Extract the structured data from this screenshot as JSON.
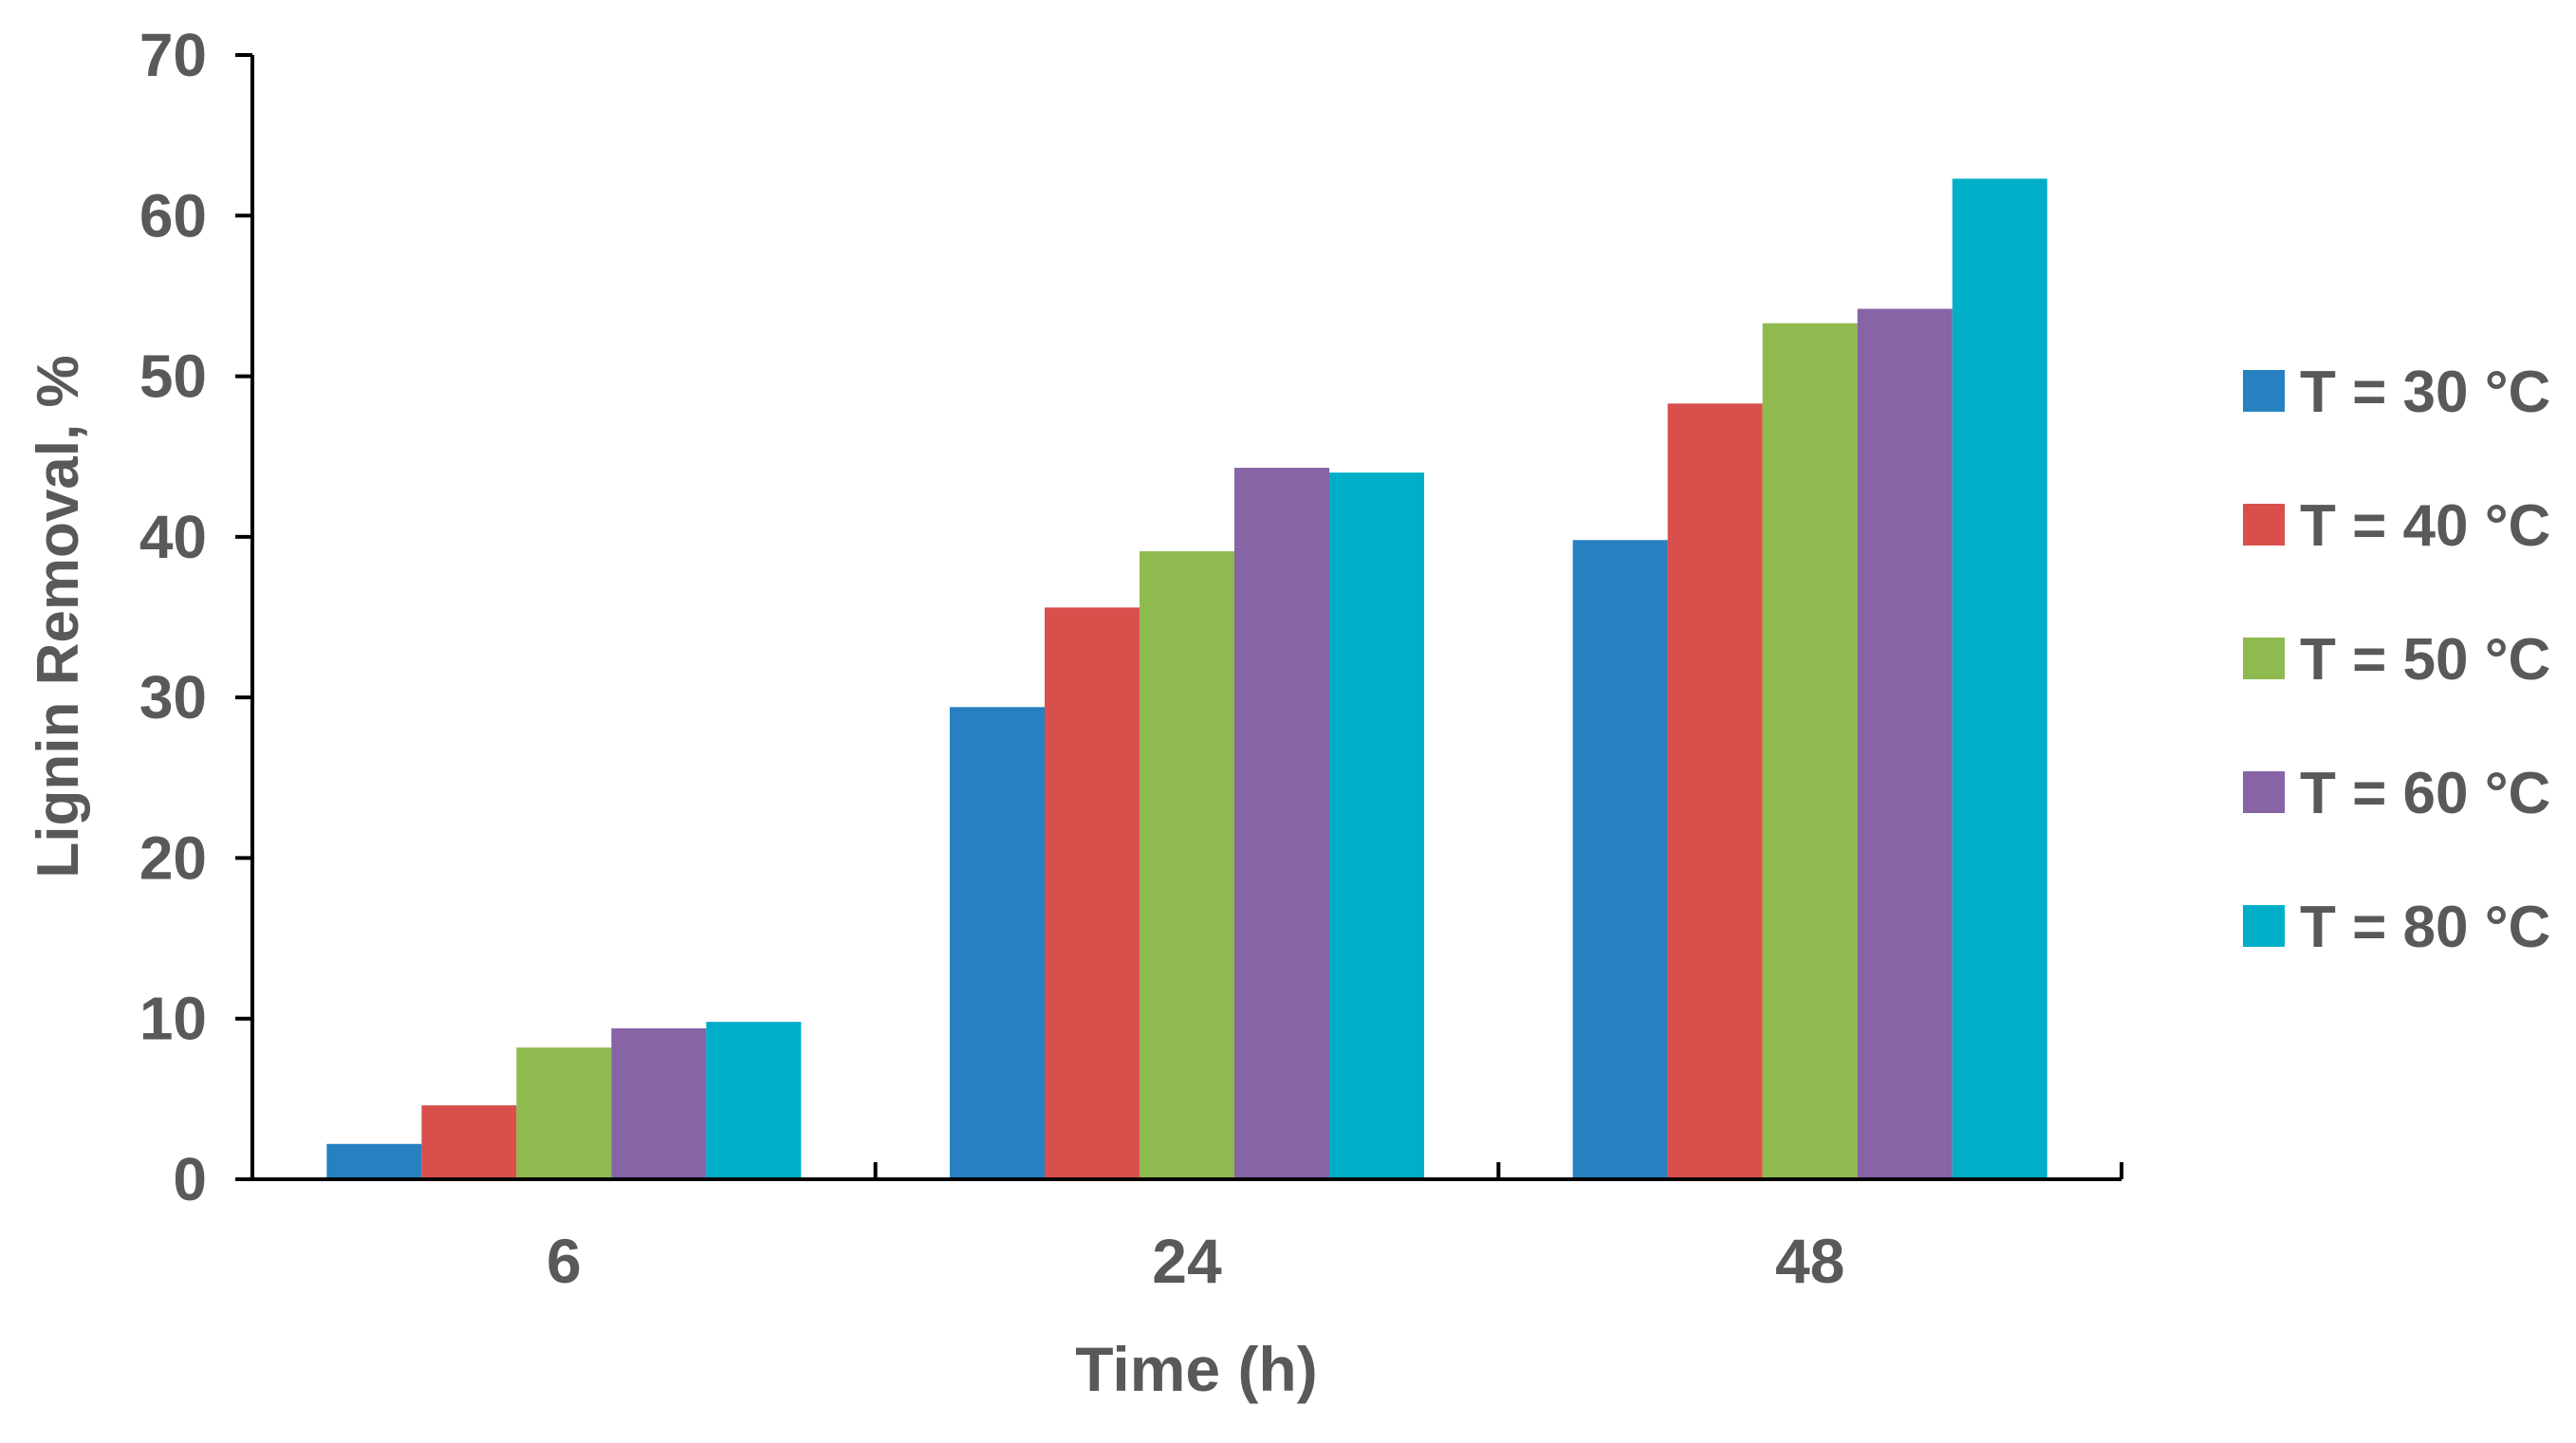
{
  "chart_data": {
    "type": "bar",
    "title": "",
    "xlabel": "Time (h)",
    "ylabel": "Lignin Removal, %",
    "categories": [
      "6",
      "24",
      "48"
    ],
    "ylim": [
      0,
      70
    ],
    "yticks": [
      0,
      10,
      20,
      30,
      40,
      50,
      60,
      70
    ],
    "grid": false,
    "legend_position": "right",
    "series": [
      {
        "name": "T = 30 °C",
        "color": "#2781C1",
        "values": [
          2.2,
          29.4,
          39.8
        ]
      },
      {
        "name": "T = 40 °C",
        "color": "#D94F4C",
        "values": [
          4.6,
          35.6,
          48.3
        ]
      },
      {
        "name": "T = 50 °C",
        "color": "#8FBA4F",
        "values": [
          8.2,
          39.1,
          53.3
        ]
      },
      {
        "name": "T = 60 °C",
        "color": "#8664A6",
        "values": [
          9.4,
          44.3,
          54.2
        ]
      },
      {
        "name": "T = 80 °C",
        "color": "#00AEC7",
        "values": [
          9.8,
          44.0,
          62.3
        ]
      }
    ],
    "colors": {
      "axis": "#000000",
      "text": "#595959"
    }
  }
}
